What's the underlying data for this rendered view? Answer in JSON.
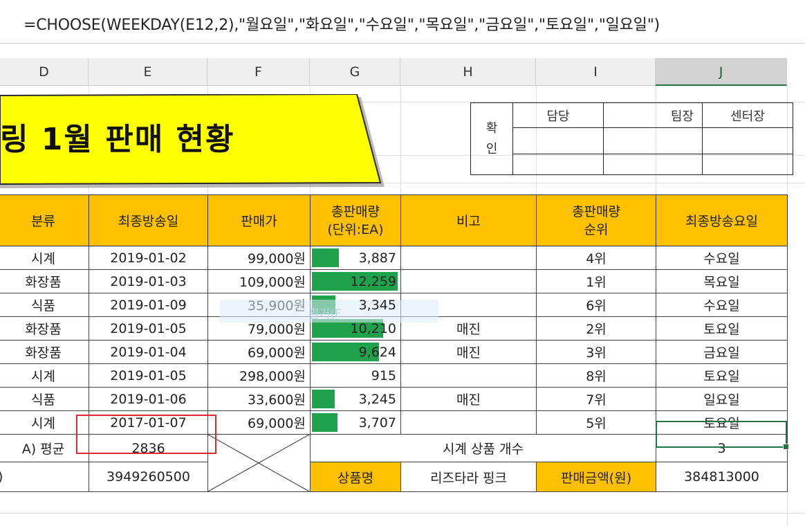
{
  "formula": "=CHOOSE(WEEKDAY(E12,2),\"월요일\",\"화요일\",\"수요일\",\"목요일\",\"금요일\",\"토요일\",\"일요일\")",
  "columns": [
    "D",
    "E",
    "F",
    "G",
    "H",
    "I",
    "J"
  ],
  "banner_title": "링 1월 판매 현황",
  "approval": {
    "label_top": "확",
    "label_bottom": "인",
    "roles": [
      "담당",
      "팀장",
      "센터장"
    ]
  },
  "headers": {
    "category": "분류",
    "last_broadcast": "최종방송일",
    "price": "판매가",
    "total_sales_line1": "총판매량",
    "total_sales_line2": "(단위:EA)",
    "note": "비고",
    "rank_line1": "총판매량",
    "rank_line2": "순위",
    "weekday": "최종방송요일"
  },
  "rows": [
    {
      "category": "시계",
      "date": "2019-01-02",
      "price": "99,000원",
      "qty": "3,887",
      "qty_value": 3887,
      "note": "",
      "rank": "4위",
      "weekday": "수요일"
    },
    {
      "category": "화장품",
      "date": "2019-01-03",
      "price": "109,000원",
      "qty": "12,259",
      "qty_value": 12259,
      "note": "",
      "rank": "1위",
      "weekday": "목요일"
    },
    {
      "category": "식품",
      "date": "2019-01-09",
      "price": "35,900원",
      "qty": "3,345",
      "qty_value": 3345,
      "note": "",
      "rank": "6위",
      "weekday": "수요일"
    },
    {
      "category": "화장품",
      "date": "2019-01-05",
      "price": "79,000원",
      "qty": "10,210",
      "qty_value": 10210,
      "note": "매진",
      "rank": "2위",
      "weekday": "토요일"
    },
    {
      "category": "화장품",
      "date": "2019-01-04",
      "price": "69,000원",
      "qty": "9,624",
      "qty_value": 9624,
      "note": "매진",
      "rank": "3위",
      "weekday": "금요일"
    },
    {
      "category": "시계",
      "date": "2019-01-05",
      "price": "298,000원",
      "qty": "915",
      "qty_value": 915,
      "note": "",
      "rank": "8위",
      "weekday": "토요일"
    },
    {
      "category": "식품",
      "date": "2019-01-06",
      "price": "33,600원",
      "qty": "3,245",
      "qty_value": 3245,
      "note": "매진",
      "rank": "7위",
      "weekday": "일요일"
    },
    {
      "category": "시계",
      "date": "2017-01-07",
      "price": "69,000원",
      "qty": "3,707",
      "qty_value": 3707,
      "note": "",
      "rank": "5위",
      "weekday": "토요일"
    }
  ],
  "summary": {
    "avg_label": "A) 평균",
    "avg_value": "2836",
    "row2_label": ")",
    "row2_value": "3949260500",
    "watch_count_label": "시계 상품 개수",
    "watch_count_value": "3",
    "product_name_label": "상품명",
    "product_name_value": "리즈타라 핑크",
    "sales_amount_label": "판매금액(원)",
    "sales_amount_value": "384813000"
  },
  "ghost_text": "필거(F",
  "colors": {
    "header_fill": "#ffc000",
    "banner_fill": "#ffff00",
    "databar": "#1fa24b",
    "active_border": "#217346",
    "highlight_box": "#e02a2a"
  }
}
